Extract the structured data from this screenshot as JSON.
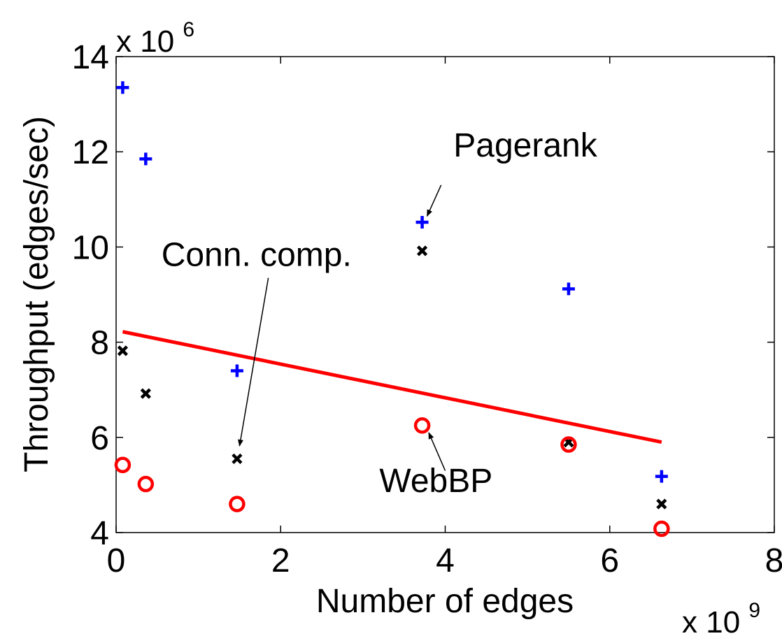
{
  "chart_data": {
    "type": "scatter",
    "xlabel": "Number of edges",
    "ylabel": "Throughput (edges/sec)",
    "x_multiplier": {
      "base": "x 10",
      "exp": "9"
    },
    "y_multiplier": {
      "base": "x 10",
      "exp": "6"
    },
    "xlim": [
      0,
      8
    ],
    "ylim": [
      4,
      14
    ],
    "x_ticks": [
      "0",
      "2",
      "4",
      "6",
      "8"
    ],
    "y_ticks": [
      "4",
      "6",
      "8",
      "10",
      "12",
      "14"
    ],
    "grid": false,
    "series": [
      {
        "marker": "plus",
        "color": "#0000ff",
        "x": [
          0.08,
          0.36,
          1.47,
          3.72,
          5.5,
          6.63
        ],
        "y": [
          13.35,
          11.85,
          7.4,
          10.52,
          9.12,
          5.18
        ]
      },
      {
        "marker": "x",
        "color": "#000000",
        "x": [
          0.08,
          0.36,
          1.47,
          3.72,
          5.5,
          6.63
        ],
        "y": [
          7.82,
          6.92,
          5.55,
          9.92,
          5.9,
          4.6
        ]
      },
      {
        "marker": "circle",
        "color": "#ff0000",
        "x": [
          0.08,
          0.36,
          1.47,
          3.72,
          5.5,
          6.63
        ],
        "y": [
          5.42,
          5.02,
          4.6,
          6.25,
          5.85,
          4.08
        ]
      }
    ],
    "trend_line": {
      "color": "#ff0000",
      "x": [
        0.08,
        6.63
      ],
      "y": [
        8.22,
        5.9
      ]
    },
    "annotations": [
      {
        "text": "Pagerank",
        "text_x": 4.1,
        "text_y": 11.9,
        "arrow_from": [
          3.95,
          11.3
        ],
        "arrow_to": [
          3.78,
          10.65
        ]
      },
      {
        "text": "Conn. comp.",
        "text_x": 0.55,
        "text_y": 9.6,
        "arrow_from": [
          1.85,
          9.35
        ],
        "arrow_to": [
          1.5,
          5.82
        ]
      },
      {
        "text": "WebBP",
        "text_x": 3.2,
        "text_y": 4.85,
        "arrow_from": [
          4.0,
          5.3
        ],
        "arrow_to": [
          3.8,
          6.1
        ]
      }
    ]
  }
}
